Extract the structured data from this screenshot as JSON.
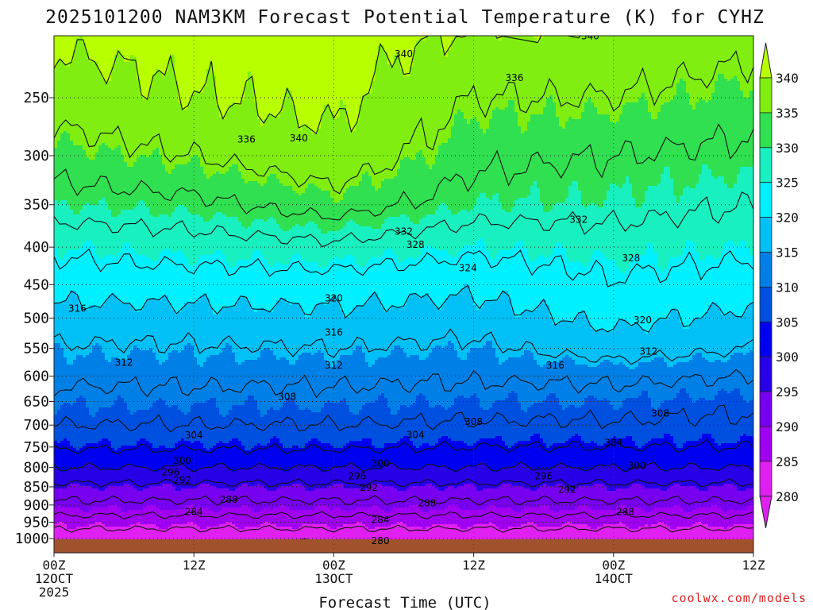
{
  "chart_data": {
    "type": "heatmap",
    "title": "2025101200 NAM3KM Forecast Potential Temperature (K) for CYHZ",
    "xlabel": "Forecast Time (UTC)",
    "ylabel": "",
    "x_range_hours": [
      0,
      60
    ],
    "x_ticks": [
      {
        "hour": 0,
        "lines": [
          "00Z",
          "12OCT",
          "2025"
        ]
      },
      {
        "hour": 12,
        "lines": [
          "12Z"
        ]
      },
      {
        "hour": 24,
        "lines": [
          "00Z",
          "13OCT"
        ]
      },
      {
        "hour": 36,
        "lines": [
          "12Z"
        ]
      },
      {
        "hour": 48,
        "lines": [
          "00Z",
          "14OCT"
        ]
      },
      {
        "hour": 60,
        "lines": [
          "12Z"
        ]
      }
    ],
    "y_scale": "log-pressure",
    "y_range_hpa": [
      1000,
      200
    ],
    "y_ticks": [
      250,
      300,
      350,
      400,
      450,
      500,
      550,
      600,
      650,
      700,
      750,
      800,
      850,
      900,
      950,
      1000
    ],
    "colorbar": {
      "ticks": [
        340,
        335,
        330,
        325,
        320,
        315,
        310,
        305,
        300,
        295,
        290,
        285,
        280
      ],
      "colors": [
        "#b8ff00",
        "#80ee10",
        "#30e050",
        "#18f0c0",
        "#00f0ff",
        "#00c0f5",
        "#0080e6",
        "#0050e0",
        "#0000f0",
        "#2800e8",
        "#7800f0",
        "#a000f0",
        "#e020f0"
      ]
    },
    "contour_levels": [
      280,
      284,
      288,
      292,
      296,
      300,
      304,
      308,
      312,
      316,
      320,
      324,
      328,
      332,
      336,
      340
    ],
    "levels_hpa": [
      1000,
      950,
      900,
      850,
      800,
      750,
      700,
      650,
      600,
      550,
      500,
      450,
      400,
      350,
      300,
      250,
      200
    ],
    "profiles": [
      {
        "hour": 0,
        "theta": [
          281,
          286,
          291,
          295,
          300,
          304.5,
          308,
          310.5,
          313,
          315.5,
          318.5,
          321.5,
          325,
          330,
          334,
          338,
          341
        ]
      },
      {
        "hour": 12,
        "theta": [
          281,
          286,
          291,
          295,
          300,
          304.5,
          308,
          310.5,
          313,
          315.5,
          318.5,
          322,
          326,
          331,
          336,
          340,
          342
        ]
      },
      {
        "hour": 24,
        "theta": [
          281,
          286,
          291,
          295,
          300,
          304.5,
          308,
          310.5,
          313,
          316,
          319,
          322,
          327,
          334,
          339,
          341,
          342
        ]
      },
      {
        "hour": 36,
        "theta": [
          281,
          286,
          291,
          295,
          300,
          304,
          307.5,
          310,
          312.5,
          315,
          318,
          321,
          325,
          330,
          333,
          336,
          340
        ]
      },
      {
        "hour": 48,
        "theta": [
          281,
          286,
          291,
          295,
          300,
          304,
          307.5,
          310,
          313,
          318,
          321,
          323.5,
          326,
          329.5,
          332,
          336,
          339.5
        ]
      },
      {
        "hour": 60,
        "theta": [
          281,
          286,
          291,
          295,
          300,
          304,
          307,
          309,
          312,
          316,
          319,
          322,
          325,
          328,
          331,
          334,
          338
        ]
      }
    ],
    "contour_labels": [
      {
        "value": "340",
        "hour": 30,
        "hpa": 218
      },
      {
        "value": "340",
        "hour": 46,
        "hpa": 206
      },
      {
        "value": "336",
        "hour": 39.5,
        "hpa": 235
      },
      {
        "value": "336",
        "hour": 16.5,
        "hpa": 285
      },
      {
        "value": "340",
        "hour": 21,
        "hpa": 284
      },
      {
        "value": "332",
        "hour": 45,
        "hpa": 367
      },
      {
        "value": "332",
        "hour": 30,
        "hpa": 381
      },
      {
        "value": "328",
        "hour": 31,
        "hpa": 397
      },
      {
        "value": "328",
        "hour": 49.5,
        "hpa": 414
      },
      {
        "value": "324",
        "hour": 35.5,
        "hpa": 427
      },
      {
        "value": "320",
        "hour": 24,
        "hpa": 470
      },
      {
        "value": "316",
        "hour": 2,
        "hpa": 485
      },
      {
        "value": "320",
        "hour": 50.5,
        "hpa": 503
      },
      {
        "value": "316",
        "hour": 24,
        "hpa": 523
      },
      {
        "value": "312",
        "hour": 51,
        "hpa": 555
      },
      {
        "value": "312",
        "hour": 6,
        "hpa": 575
      },
      {
        "value": "312",
        "hour": 24,
        "hpa": 580
      },
      {
        "value": "316",
        "hour": 43,
        "hpa": 580
      },
      {
        "value": "308",
        "hour": 20,
        "hpa": 640
      },
      {
        "value": "308",
        "hour": 52,
        "hpa": 675
      },
      {
        "value": "308",
        "hour": 36,
        "hpa": 693
      },
      {
        "value": "304",
        "hour": 12,
        "hpa": 723
      },
      {
        "value": "304",
        "hour": 31,
        "hpa": 722
      },
      {
        "value": "304",
        "hour": 48,
        "hpa": 740
      },
      {
        "value": "300",
        "hour": 11,
        "hpa": 783
      },
      {
        "value": "300",
        "hour": 28,
        "hpa": 790
      },
      {
        "value": "300",
        "hour": 50,
        "hpa": 796
      },
      {
        "value": "296",
        "hour": 10,
        "hpa": 812
      },
      {
        "value": "296",
        "hour": 26,
        "hpa": 822
      },
      {
        "value": "296",
        "hour": 42,
        "hpa": 822
      },
      {
        "value": "292",
        "hour": 11,
        "hpa": 832
      },
      {
        "value": "292",
        "hour": 27,
        "hpa": 852
      },
      {
        "value": "292",
        "hour": 44,
        "hpa": 858
      },
      {
        "value": "288",
        "hour": 15,
        "hpa": 885
      },
      {
        "value": "288",
        "hour": 32,
        "hpa": 895
      },
      {
        "value": "288",
        "hour": 49,
        "hpa": 920
      },
      {
        "value": "284",
        "hour": 12,
        "hpa": 920
      },
      {
        "value": "284",
        "hour": 28,
        "hpa": 943
      },
      {
        "value": "280",
        "hour": 28,
        "hpa": 1007
      }
    ],
    "credit": "coolwx.com/models"
  }
}
